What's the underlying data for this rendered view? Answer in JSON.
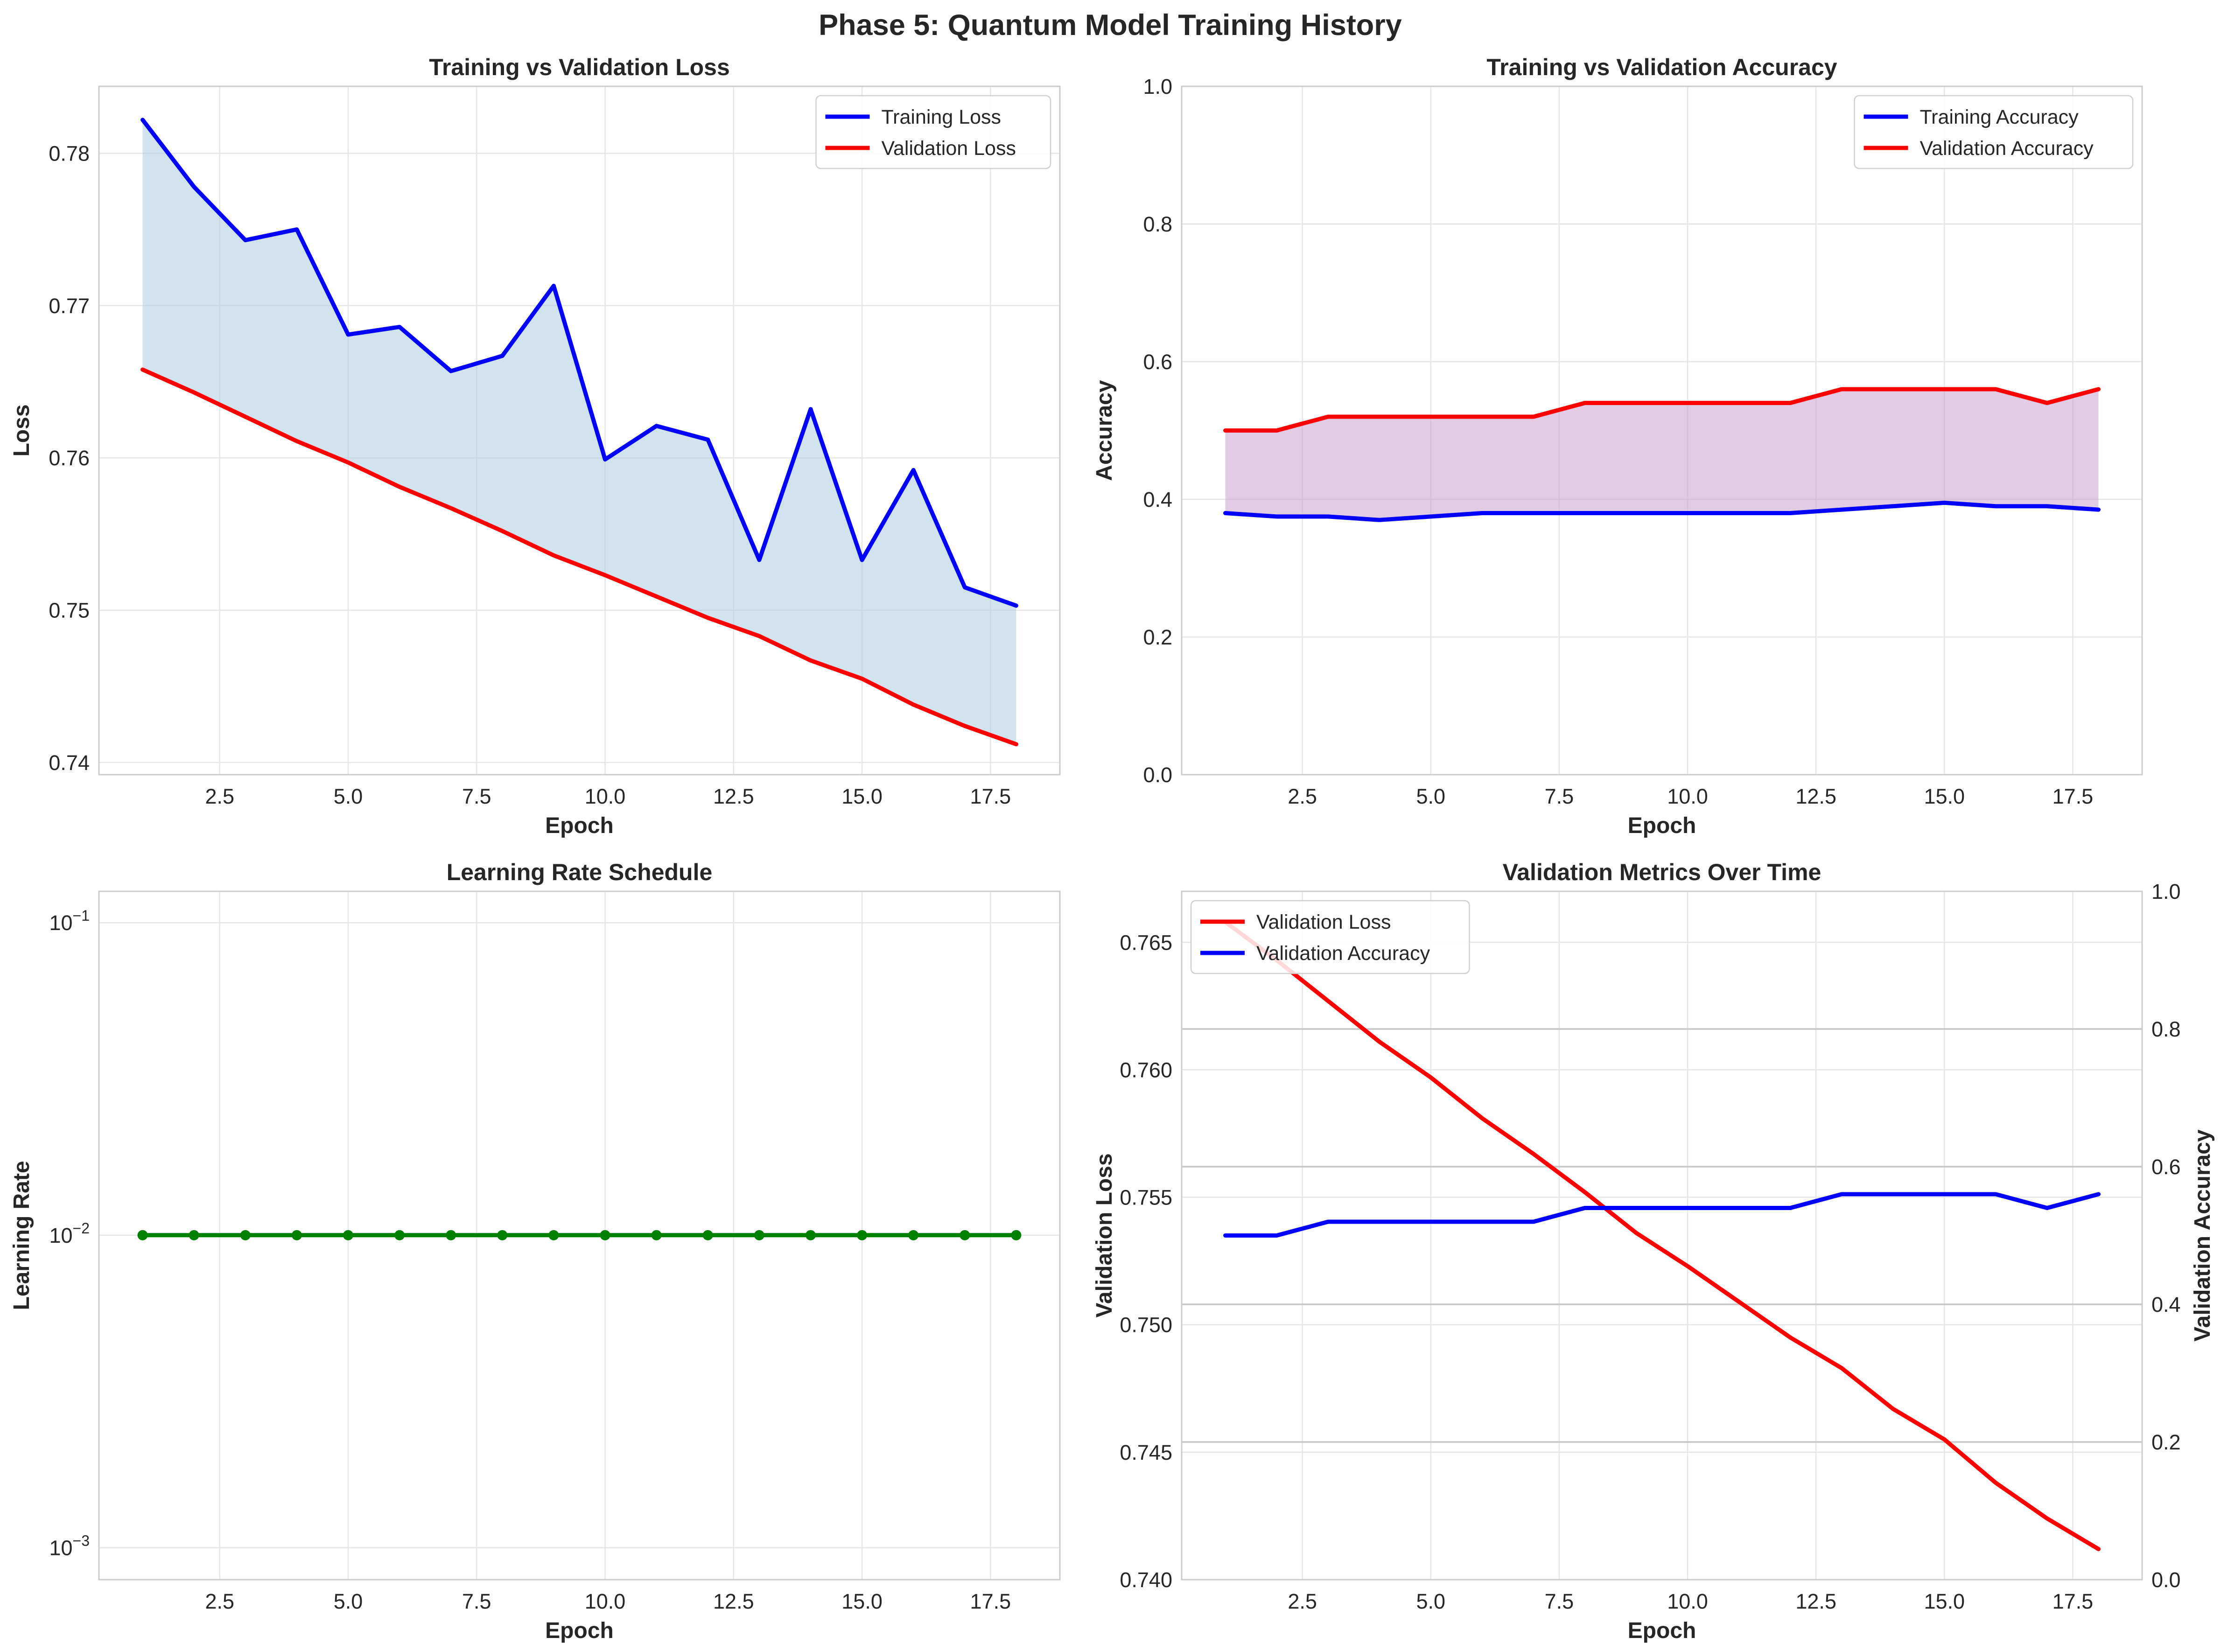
{
  "figure": {
    "suptitle": "Phase 5: Quantum Model Training History"
  },
  "chart_data": [
    {
      "type": "line",
      "title": "Training vs Validation Loss",
      "xlabel": "Epoch",
      "ylabel": "Loss",
      "x": [
        1,
        2,
        3,
        4,
        5,
        6,
        7,
        8,
        9,
        10,
        11,
        12,
        13,
        14,
        15,
        16,
        17,
        18
      ],
      "xlim": [
        0.15,
        18.85
      ],
      "ylim": [
        0.7392,
        0.7844
      ],
      "xticks": [
        2.5,
        5.0,
        7.5,
        10.0,
        12.5,
        15.0,
        17.5
      ],
      "xtick_labels": [
        "2.5",
        "5.0",
        "7.5",
        "10.0",
        "12.5",
        "15.0",
        "17.5"
      ],
      "yticks": [
        0.74,
        0.75,
        0.76,
        0.77,
        0.78
      ],
      "ytick_labels": [
        "0.74",
        "0.75",
        "0.76",
        "0.77",
        "0.78"
      ],
      "grid": true,
      "legend": "upper right",
      "fill_between": {
        "color": "#a6c8e2",
        "alpha": 0.5
      },
      "series": [
        {
          "name": "Training Loss",
          "color": "#0000ff",
          "values": [
            0.7822,
            0.7778,
            0.7743,
            0.775,
            0.7681,
            0.7686,
            0.7657,
            0.7667,
            0.7713,
            0.7599,
            0.7621,
            0.7612,
            0.7533,
            0.7632,
            0.7533,
            0.7592,
            0.7515,
            0.7503
          ]
        },
        {
          "name": "Validation Loss",
          "color": "#ff0000",
          "values": [
            0.7658,
            0.7643,
            0.7627,
            0.7611,
            0.7597,
            0.7581,
            0.7567,
            0.7552,
            0.7536,
            0.7523,
            0.7509,
            0.7495,
            0.7483,
            0.7467,
            0.7455,
            0.7438,
            0.7424,
            0.7412
          ]
        }
      ]
    },
    {
      "type": "line",
      "title": "Training vs Validation Accuracy",
      "xlabel": "Epoch",
      "ylabel": "Accuracy",
      "x": [
        1,
        2,
        3,
        4,
        5,
        6,
        7,
        8,
        9,
        10,
        11,
        12,
        13,
        14,
        15,
        16,
        17,
        18
      ],
      "xlim": [
        0.15,
        18.85
      ],
      "ylim": [
        0.0,
        1.0
      ],
      "xticks": [
        2.5,
        5.0,
        7.5,
        10.0,
        12.5,
        15.0,
        17.5
      ],
      "xtick_labels": [
        "2.5",
        "5.0",
        "7.5",
        "10.0",
        "12.5",
        "15.0",
        "17.5"
      ],
      "yticks": [
        0.0,
        0.2,
        0.4,
        0.6,
        0.8,
        1.0
      ],
      "ytick_labels": [
        "0.0",
        "0.2",
        "0.4",
        "0.6",
        "0.8",
        "1.0"
      ],
      "grid": true,
      "legend": "upper right",
      "fill_between": {
        "color": "#c9a0cf",
        "alpha": 0.55
      },
      "series": [
        {
          "name": "Training Accuracy",
          "color": "#0000ff",
          "values": [
            0.38,
            0.375,
            0.375,
            0.37,
            0.375,
            0.38,
            0.38,
            0.38,
            0.38,
            0.38,
            0.38,
            0.38,
            0.385,
            0.39,
            0.395,
            0.39,
            0.39,
            0.385
          ]
        },
        {
          "name": "Validation Accuracy",
          "color": "#ff0000",
          "values": [
            0.5,
            0.5,
            0.52,
            0.52,
            0.52,
            0.52,
            0.52,
            0.54,
            0.54,
            0.54,
            0.54,
            0.54,
            0.56,
            0.56,
            0.56,
            0.56,
            0.54,
            0.56
          ]
        }
      ]
    },
    {
      "type": "line",
      "title": "Learning Rate Schedule",
      "xlabel": "Epoch",
      "ylabel": "Learning Rate",
      "yscale": "log",
      "x": [
        1,
        2,
        3,
        4,
        5,
        6,
        7,
        8,
        9,
        10,
        11,
        12,
        13,
        14,
        15,
        16,
        17,
        18
      ],
      "xlim": [
        0.15,
        18.85
      ],
      "ylim": [
        0.00079,
        0.126
      ],
      "xticks": [
        2.5,
        5.0,
        7.5,
        10.0,
        12.5,
        15.0,
        17.5
      ],
      "xtick_labels": [
        "2.5",
        "5.0",
        "7.5",
        "10.0",
        "12.5",
        "15.0",
        "17.5"
      ],
      "yticks": [
        0.001,
        0.01,
        0.1
      ],
      "ytick_labels": [
        [
          "10",
          "−3"
        ],
        [
          "10",
          "−2"
        ],
        [
          "10",
          "−1"
        ]
      ],
      "grid": true,
      "series": [
        {
          "color": "#008000",
          "marker": "o",
          "values": [
            0.01,
            0.01,
            0.01,
            0.01,
            0.01,
            0.01,
            0.01,
            0.01,
            0.01,
            0.01,
            0.01,
            0.01,
            0.01,
            0.01,
            0.01,
            0.01,
            0.01,
            0.01
          ]
        }
      ]
    },
    {
      "type": "line",
      "title": "Validation Metrics Over Time",
      "xlabel": "Epoch",
      "ylabel": "Validation Loss",
      "ylabel_right": "Validation Accuracy",
      "x": [
        1,
        2,
        3,
        4,
        5,
        6,
        7,
        8,
        9,
        10,
        11,
        12,
        13,
        14,
        15,
        16,
        17,
        18
      ],
      "xlim": [
        0.15,
        18.85
      ],
      "ylim": [
        0.74,
        0.767
      ],
      "ylim_right": [
        0.0,
        1.0
      ],
      "xticks": [
        2.5,
        5.0,
        7.5,
        10.0,
        12.5,
        15.0,
        17.5
      ],
      "xtick_labels": [
        "2.5",
        "5.0",
        "7.5",
        "10.0",
        "12.5",
        "15.0",
        "17.5"
      ],
      "yticks": [
        0.74,
        0.745,
        0.75,
        0.755,
        0.76,
        0.765
      ],
      "ytick_labels": [
        "0.740",
        "0.745",
        "0.750",
        "0.755",
        "0.760",
        "0.765"
      ],
      "yticks_right": [
        0.0,
        0.2,
        0.4,
        0.6,
        0.8,
        1.0
      ],
      "ytick_labels_right": [
        "0.0",
        "0.2",
        "0.4",
        "0.6",
        "0.8",
        "1.0"
      ],
      "grid": true,
      "legend": "upper left",
      "series": [
        {
          "name": "Validation Loss",
          "color": "#ff0000",
          "axis": "left",
          "values": [
            0.7658,
            0.7643,
            0.7627,
            0.7611,
            0.7597,
            0.7581,
            0.7567,
            0.7552,
            0.7536,
            0.7523,
            0.7509,
            0.7495,
            0.7483,
            0.7467,
            0.7455,
            0.7438,
            0.7424,
            0.7412
          ]
        },
        {
          "name": "Validation Accuracy",
          "color": "#0000ff",
          "axis": "right",
          "values": [
            0.5,
            0.5,
            0.52,
            0.52,
            0.52,
            0.52,
            0.52,
            0.54,
            0.54,
            0.54,
            0.54,
            0.54,
            0.56,
            0.56,
            0.56,
            0.56,
            0.54,
            0.56
          ]
        }
      ]
    }
  ]
}
